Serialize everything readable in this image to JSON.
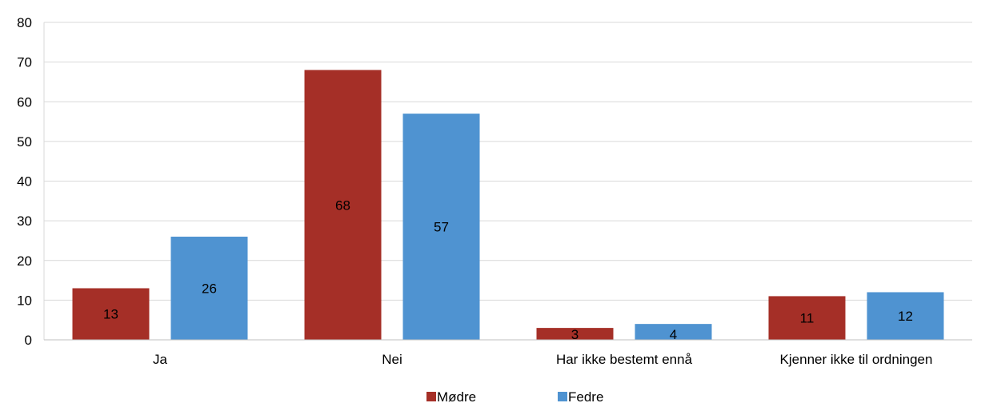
{
  "chart_data": {
    "type": "bar",
    "categories": [
      "Ja",
      "Nei",
      "Har ikke bestemt ennå",
      "Kjenner ikke til ordningen"
    ],
    "series": [
      {
        "name": "Mødre",
        "values": [
          13,
          68,
          3,
          11
        ],
        "color": "#a52f27"
      },
      {
        "name": "Fedre",
        "values": [
          26,
          57,
          4,
          12
        ],
        "color": "#4f93d1"
      }
    ],
    "ylim": [
      0,
      80
    ],
    "yticks": [
      0,
      10,
      20,
      30,
      40,
      50,
      60,
      70,
      80
    ],
    "grid": true,
    "legend": "bottom-center",
    "data_labels": true
  }
}
